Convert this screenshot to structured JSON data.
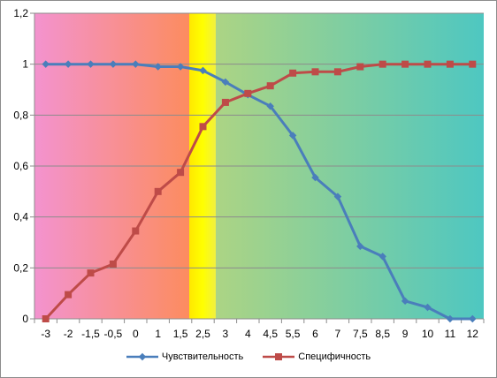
{
  "chart_data": {
    "type": "line",
    "title": "",
    "xlabel": "",
    "ylabel": "",
    "categories": [
      "-3",
      "-2",
      "-1,5",
      "-0,5",
      "0",
      "1",
      "1,5",
      "2,5",
      "3",
      "4",
      "4,5",
      "5,5",
      "6",
      "7",
      "7,5",
      "8,5",
      "9",
      "10",
      "11",
      "12"
    ],
    "ylim": [
      0,
      1.2
    ],
    "yticks": [
      "0",
      "0,2",
      "0,4",
      "0,6",
      "0,8",
      "1",
      "1,2"
    ],
    "grid": true,
    "legend_position": "bottom",
    "series": [
      {
        "name": "Чувствительность",
        "color": "#4a7ebb",
        "marker": "diamond",
        "values": [
          1,
          1,
          1,
          1,
          1,
          0.99,
          0.99,
          0.975,
          0.93,
          0.88,
          0.835,
          0.72,
          0.555,
          0.48,
          0.285,
          0.245,
          0.07,
          0.045,
          0,
          0
        ]
      },
      {
        "name": "Специфичность",
        "color": "#be4b48",
        "marker": "square",
        "values": [
          0,
          0.095,
          0.18,
          0.215,
          0.345,
          0.5,
          0.575,
          0.755,
          0.85,
          0.885,
          0.915,
          0.965,
          0.97,
          0.97,
          0.99,
          1,
          1,
          1,
          1,
          1
        ]
      }
    ],
    "background_colors": {
      "pink": "#f28fd0",
      "salmon": "#fb8f6d",
      "yellow": "#ffff00",
      "light_green": "#a6d48a",
      "teal": "#4fc7c0"
    }
  }
}
